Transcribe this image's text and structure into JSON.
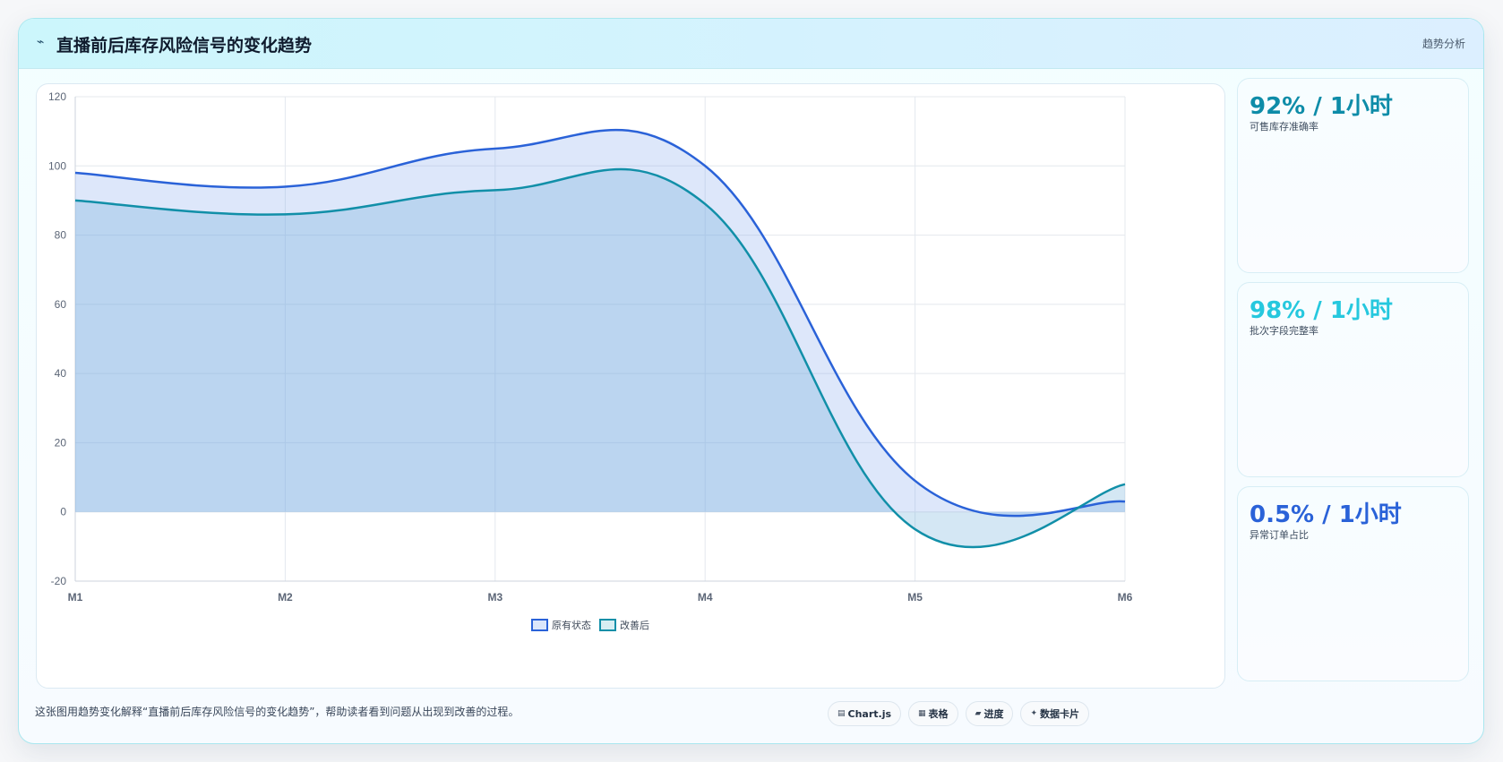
{
  "header": {
    "icon": "pulse-icon",
    "title": "直播前后库存风险信号的变化趋势",
    "tag": "趋势分析"
  },
  "colors": {
    "original": "#2a62d8",
    "improved": "#118fa8",
    "metric_1": "#0e8ca8",
    "metric_2": "#26c8de",
    "metric_3": "#2a62d8"
  },
  "chart_data": {
    "type": "line",
    "categories": [
      "M1",
      "M2",
      "M3",
      "M4",
      "M5",
      "M6"
    ],
    "series": [
      {
        "name": "原有状态",
        "values": [
          98,
          94,
          105,
          100,
          9,
          3
        ],
        "fill": true
      },
      {
        "name": "改善后",
        "values": [
          90,
          86,
          93,
          89,
          -5,
          8
        ],
        "fill": true
      }
    ],
    "ylim": [
      -20,
      120
    ],
    "yticks": [
      -20,
      0,
      20,
      40,
      60,
      80,
      100,
      120
    ],
    "grid": true,
    "legend": "bottom"
  },
  "metrics": [
    {
      "value": "92% / 1小时",
      "label": "可售库存准确率"
    },
    {
      "value": "98% / 1小时",
      "label": "批次字段完整率"
    },
    {
      "value": "0.5% / 1小时",
      "label": "异常订单占比"
    }
  ],
  "footer": {
    "text": "这张图用趋势变化解释“直播前后库存风险信号的变化趋势”，帮助读者看到问题从出现到改善的过程。",
    "chips": [
      {
        "icon": "chart-icon",
        "glyph": "▤",
        "label": "Chart.js"
      },
      {
        "icon": "table-icon",
        "glyph": "▦",
        "label": "表格"
      },
      {
        "icon": "progress-icon",
        "glyph": "▰",
        "label": "进度"
      },
      {
        "icon": "card-icon",
        "glyph": "✦",
        "label": "数据卡片"
      }
    ]
  }
}
